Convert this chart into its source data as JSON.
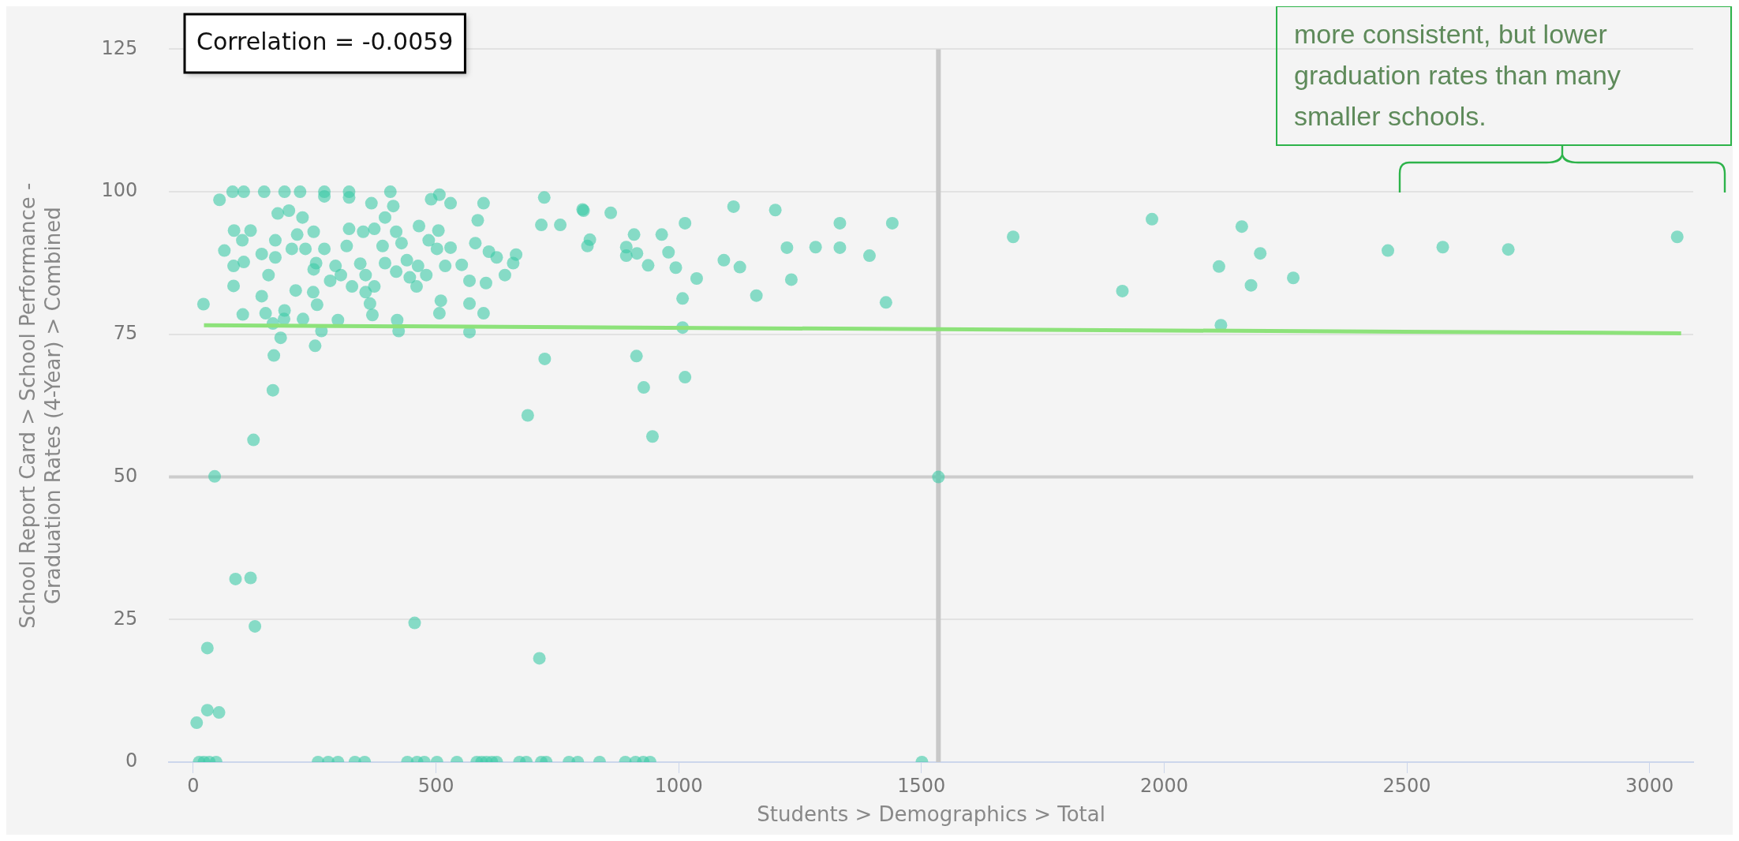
{
  "chart_data": {
    "type": "scatter",
    "xlabel": "Students > Demographics > Total",
    "ylabel": "School Report Card > School Performance -\nGraduation Rates (4-Year) > Combined",
    "xlim": [
      -50,
      3090
    ],
    "xticks": [
      0,
      500,
      1000,
      1500,
      2000,
      2500,
      3000
    ],
    "ylim": [
      0,
      125
    ],
    "yticks": [
      0,
      25,
      50,
      75,
      100,
      125
    ],
    "grid": "y",
    "legend": false,
    "annotations": [
      "Correlation = -0.0059",
      "more consistent, but lower graduation rates than many smaller schools."
    ],
    "ref_lines": [
      {
        "axis": "x",
        "value": 1535,
        "color": "#c8c8c8"
      },
      {
        "axis": "y",
        "value": 50,
        "color": "#cccccc"
      }
    ],
    "series": [
      {
        "type": "scatter",
        "color": "#3cc9a6",
        "marker": "circle",
        "x": [
          12,
          22,
          33,
          47,
          257,
          278,
          298,
          333,
          353,
          441,
          461,
          476,
          502,
          543,
          584,
          594,
          604,
          615,
          625,
          672,
          686,
          717,
          727,
          774,
          792,
          837,
          890,
          911,
          927,
          941,
          1501,
          7,
          29,
          29,
          53,
          44,
          87,
          118,
          127,
          124,
          456,
          713,
          689,
          164,
          1535,
          54,
          81,
          104,
          146,
          188,
          220,
          270,
          321,
          406,
          64,
          84,
          118,
          101,
          141,
          83,
          104,
          83,
          21,
          102,
          141,
          149,
          188,
          211,
          247,
          255,
          226,
          187,
          180,
          251,
          166,
          164,
          174,
          197,
          225,
          248,
          270,
          270,
          253,
          231,
          214,
          203,
          169,
          169,
          155,
          248,
          293,
          282,
          321,
          321,
          316,
          350,
          367,
          373,
          344,
          304,
          327,
          355,
          373,
          390,
          395,
          418,
          412,
          429,
          395,
          418,
          440,
          463,
          480,
          446,
          460,
          490,
          507,
          530,
          465,
          505,
          485,
          502,
          530,
          519,
          553,
          581,
          598,
          586,
          609,
          569,
          603,
          625,
          665,
          659,
          642,
          723,
          717,
          756,
          804,
          812,
          355,
          364,
          369,
          510,
          507,
          569,
          598,
          420,
          298,
          264,
          423,
          569,
          724,
          802,
          860,
          817,
          908,
          892,
          892,
          914,
          937,
          965,
          979,
          994,
          1013,
          1037,
          1008,
          1008,
          1093,
          1113,
          1126,
          1160,
          1199,
          1223,
          1232,
          1282,
          1332,
          1332,
          1393,
          1440,
          1427,
          913,
          928,
          1013,
          946,
          1689,
          1914,
          1975,
          2113,
          2160,
          2179,
          2198,
          2266,
          2117,
          2461,
          2574,
          2709,
          3057
        ],
        "values": [
          0,
          0,
          0,
          0,
          0,
          0,
          0,
          0,
          0,
          0,
          0,
          0,
          0,
          0,
          0,
          0,
          0,
          0,
          0,
          0,
          0,
          0,
          0,
          0,
          0,
          0,
          0,
          0,
          0,
          0,
          0,
          6.9,
          20,
          9.1,
          8.7,
          50.1,
          32.1,
          32.3,
          23.8,
          56.5,
          24.4,
          18.2,
          60.8,
          65.2,
          50,
          98.6,
          100,
          100,
          100,
          100,
          100,
          100,
          100,
          100,
          89.7,
          93.2,
          93.2,
          91.5,
          89.1,
          87,
          87.7,
          83.5,
          80.3,
          78.5,
          81.7,
          78.7,
          79.2,
          82.7,
          82.4,
          80.2,
          77.7,
          77.7,
          74.4,
          73,
          71.3,
          76.9,
          96.2,
          96.7,
          95.5,
          93,
          99.2,
          90,
          87.5,
          90,
          92.5,
          90,
          91.5,
          88.5,
          85.4,
          86.4,
          87,
          84.4,
          99,
          93.5,
          90.5,
          93,
          98,
          93.5,
          87.4,
          85.4,
          83.4,
          85.4,
          83.4,
          90.5,
          95.5,
          93,
          97.5,
          91,
          87.5,
          86,
          88,
          87,
          85.4,
          85,
          83.4,
          98.7,
          99.5,
          98,
          94,
          93.2,
          91.5,
          90,
          90.2,
          87,
          87.2,
          91,
          98,
          95,
          89.5,
          84.4,
          84,
          88.5,
          89,
          87.5,
          85.4,
          99,
          94.2,
          94.2,
          96.7,
          90.5,
          82.4,
          80.4,
          78.4,
          80.9,
          78.7,
          80.4,
          78.7,
          77.5,
          77.5,
          75.6,
          75.6,
          75.4,
          70.7,
          96.9,
          96.3,
          91.6,
          92.5,
          90.3,
          88.8,
          89.2,
          87.1,
          92.5,
          89.4,
          86.7,
          94.5,
          84.8,
          81.3,
          76.2,
          88,
          97.4,
          86.8,
          81.8,
          96.8,
          90.2,
          84.6,
          90.3,
          94.5,
          90.2,
          88.8,
          94.5,
          80.6,
          71.2,
          65.7,
          67.5,
          57.1,
          92.1,
          82.6,
          95.2,
          86.9,
          93.9,
          83.6,
          89.2,
          84.9,
          76.6,
          89.7,
          90.3,
          89.9,
          92.1
        ]
      },
      {
        "type": "line",
        "color": "#8de27a",
        "x": [
          22,
          3065
        ],
        "values": [
          76.6,
          75.2
        ]
      }
    ]
  }
}
